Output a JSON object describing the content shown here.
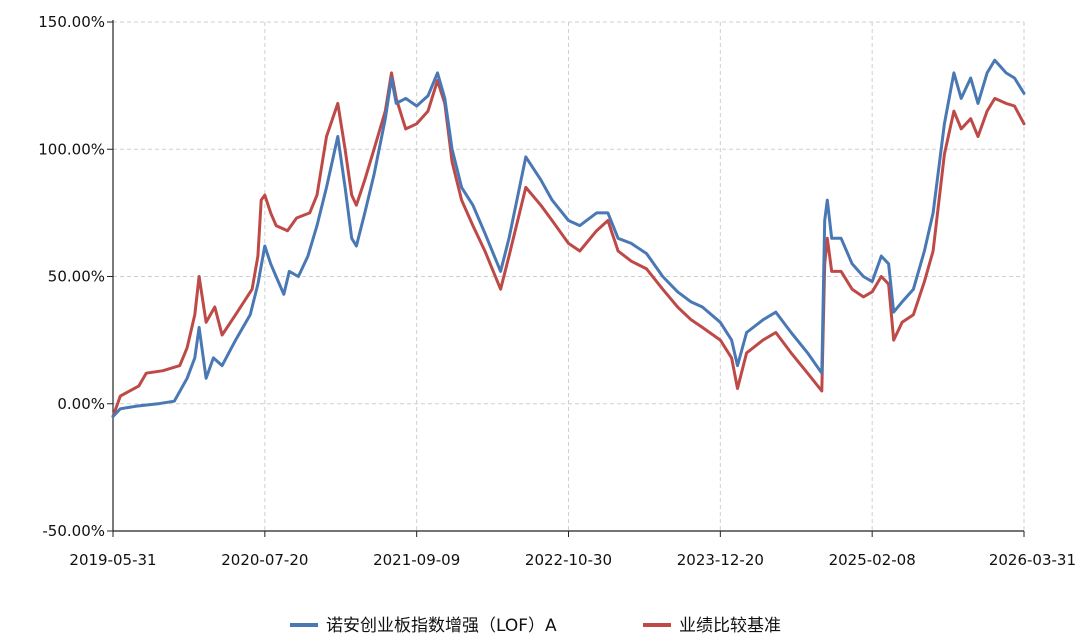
{
  "chart_data": {
    "type": "line",
    "title": "",
    "xlabel": "",
    "ylabel": "",
    "x_start": "2019-05-31",
    "x_end": "2026-03-31",
    "ylim": [
      -50,
      150
    ],
    "y_ticks": [
      -50,
      0,
      50,
      100,
      150
    ],
    "y_tick_labels": [
      "-50.00%",
      "0.00%",
      "50.00%",
      "100.00%",
      "150.00%"
    ],
    "x_ticks": [
      "2019-05-31",
      "2020-07-20",
      "2021-09-09",
      "2022-10-30",
      "2023-12-20",
      "2025-02-08",
      "2026-03-31"
    ],
    "grid": true,
    "legend_position": "bottom",
    "series": [
      {
        "name": "诺安创业板指数增强（LOF）A",
        "color": "#4a78b4",
        "points": [
          [
            "2019-05-31",
            -5
          ],
          [
            "2019-06-20",
            -2
          ],
          [
            "2019-08-01",
            -1
          ],
          [
            "2019-10-01",
            0
          ],
          [
            "2019-11-15",
            1
          ],
          [
            "2019-12-20",
            10
          ],
          [
            "2020-01-10",
            18
          ],
          [
            "2020-01-22",
            30
          ],
          [
            "2020-02-10",
            10
          ],
          [
            "2020-03-01",
            18
          ],
          [
            "2020-03-25",
            15
          ],
          [
            "2020-05-01",
            25
          ],
          [
            "2020-06-10",
            35
          ],
          [
            "2020-07-01",
            47
          ],
          [
            "2020-07-20",
            62
          ],
          [
            "2020-08-05",
            55
          ],
          [
            "2020-08-20",
            50
          ],
          [
            "2020-09-10",
            43
          ],
          [
            "2020-09-25",
            52
          ],
          [
            "2020-10-20",
            50
          ],
          [
            "2020-11-15",
            58
          ],
          [
            "2020-12-10",
            70
          ],
          [
            "2021-01-05",
            85
          ],
          [
            "2021-02-05",
            105
          ],
          [
            "2021-02-25",
            85
          ],
          [
            "2021-03-15",
            65
          ],
          [
            "2021-03-28",
            62
          ],
          [
            "2021-04-20",
            75
          ],
          [
            "2021-05-15",
            90
          ],
          [
            "2021-06-15",
            112
          ],
          [
            "2021-07-02",
            128
          ],
          [
            "2021-07-15",
            118
          ],
          [
            "2021-08-10",
            120
          ],
          [
            "2021-09-09",
            117
          ],
          [
            "2021-10-10",
            121
          ],
          [
            "2021-11-05",
            130
          ],
          [
            "2021-11-25",
            120
          ],
          [
            "2021-12-15",
            100
          ],
          [
            "2022-01-10",
            85
          ],
          [
            "2022-02-10",
            78
          ],
          [
            "2022-03-15",
            67
          ],
          [
            "2022-04-27",
            52
          ],
          [
            "2022-05-20",
            65
          ],
          [
            "2022-07-05",
            97
          ],
          [
            "2022-08-15",
            88
          ],
          [
            "2022-09-15",
            80
          ],
          [
            "2022-10-30",
            72
          ],
          [
            "2022-11-30",
            70
          ],
          [
            "2023-01-15",
            75
          ],
          [
            "2023-02-15",
            75
          ],
          [
            "2023-03-15",
            65
          ],
          [
            "2023-04-20",
            63
          ],
          [
            "2023-06-01",
            59
          ],
          [
            "2023-07-15",
            50
          ],
          [
            "2023-08-25",
            44
          ],
          [
            "2023-10-01",
            40
          ],
          [
            "2023-11-01",
            38
          ],
          [
            "2023-12-20",
            32
          ],
          [
            "2024-01-20",
            25
          ],
          [
            "2024-02-05",
            15
          ],
          [
            "2024-03-01",
            28
          ],
          [
            "2024-04-15",
            33
          ],
          [
            "2024-05-20",
            36
          ],
          [
            "2024-07-01",
            28
          ],
          [
            "2024-08-15",
            20
          ],
          [
            "2024-09-23",
            12
          ],
          [
            "2024-10-01",
            72
          ],
          [
            "2024-10-08",
            80
          ],
          [
            "2024-10-20",
            65
          ],
          [
            "2024-11-15",
            65
          ],
          [
            "2024-12-15",
            55
          ],
          [
            "2025-01-15",
            50
          ],
          [
            "2025-02-08",
            48
          ],
          [
            "2025-03-05",
            58
          ],
          [
            "2025-03-25",
            55
          ],
          [
            "2025-04-08",
            36
          ],
          [
            "2025-05-01",
            40
          ],
          [
            "2025-06-01",
            45
          ],
          [
            "2025-07-01",
            60
          ],
          [
            "2025-07-25",
            75
          ],
          [
            "2025-08-25",
            110
          ],
          [
            "2025-09-20",
            130
          ],
          [
            "2025-10-10",
            120
          ],
          [
            "2025-11-05",
            128
          ],
          [
            "2025-11-25",
            118
          ],
          [
            "2025-12-20",
            130
          ],
          [
            "2026-01-10",
            135
          ],
          [
            "2026-02-10",
            130
          ],
          [
            "2026-03-05",
            128
          ],
          [
            "2026-03-31",
            122
          ]
        ]
      },
      {
        "name": "业绩比较基准",
        "color": "#be4a48",
        "points": [
          [
            "2019-05-31",
            -5
          ],
          [
            "2019-06-20",
            3
          ],
          [
            "2019-08-10",
            7
          ],
          [
            "2019-08-30",
            12
          ],
          [
            "2019-10-15",
            13
          ],
          [
            "2019-11-30",
            15
          ],
          [
            "2019-12-20",
            22
          ],
          [
            "2020-01-10",
            35
          ],
          [
            "2020-01-22",
            50
          ],
          [
            "2020-02-10",
            32
          ],
          [
            "2020-03-05",
            38
          ],
          [
            "2020-03-25",
            27
          ],
          [
            "2020-05-01",
            35
          ],
          [
            "2020-06-15",
            45
          ],
          [
            "2020-07-01",
            58
          ],
          [
            "2020-07-10",
            80
          ],
          [
            "2020-07-20",
            82
          ],
          [
            "2020-08-05",
            75
          ],
          [
            "2020-08-20",
            70
          ],
          [
            "2020-09-20",
            68
          ],
          [
            "2020-10-15",
            73
          ],
          [
            "2020-11-20",
            75
          ],
          [
            "2020-12-10",
            82
          ],
          [
            "2021-01-05",
            105
          ],
          [
            "2021-02-05",
            118
          ],
          [
            "2021-02-25",
            100
          ],
          [
            "2021-03-15",
            82
          ],
          [
            "2021-03-28",
            78
          ],
          [
            "2021-04-20",
            88
          ],
          [
            "2021-05-15",
            100
          ],
          [
            "2021-06-15",
            115
          ],
          [
            "2021-07-02",
            130
          ],
          [
            "2021-07-15",
            120
          ],
          [
            "2021-08-10",
            108
          ],
          [
            "2021-09-09",
            110
          ],
          [
            "2021-10-10",
            115
          ],
          [
            "2021-11-05",
            127
          ],
          [
            "2021-11-25",
            118
          ],
          [
            "2021-12-15",
            95
          ],
          [
            "2022-01-10",
            80
          ],
          [
            "2022-02-10",
            70
          ],
          [
            "2022-03-15",
            60
          ],
          [
            "2022-04-27",
            45
          ],
          [
            "2022-05-20",
            58
          ],
          [
            "2022-07-05",
            85
          ],
          [
            "2022-08-15",
            78
          ],
          [
            "2022-09-15",
            72
          ],
          [
            "2022-10-30",
            63
          ],
          [
            "2022-11-30",
            60
          ],
          [
            "2023-01-15",
            68
          ],
          [
            "2023-02-15",
            72
          ],
          [
            "2023-03-15",
            60
          ],
          [
            "2023-04-20",
            56
          ],
          [
            "2023-06-01",
            53
          ],
          [
            "2023-07-15",
            45
          ],
          [
            "2023-08-25",
            38
          ],
          [
            "2023-10-01",
            33
          ],
          [
            "2023-11-01",
            30
          ],
          [
            "2023-12-20",
            25
          ],
          [
            "2024-01-20",
            18
          ],
          [
            "2024-02-05",
            6
          ],
          [
            "2024-03-01",
            20
          ],
          [
            "2024-04-15",
            25
          ],
          [
            "2024-05-20",
            28
          ],
          [
            "2024-07-01",
            20
          ],
          [
            "2024-08-15",
            12
          ],
          [
            "2024-09-23",
            5
          ],
          [
            "2024-10-01",
            55
          ],
          [
            "2024-10-08",
            65
          ],
          [
            "2024-10-20",
            52
          ],
          [
            "2024-11-15",
            52
          ],
          [
            "2024-12-15",
            45
          ],
          [
            "2025-01-15",
            42
          ],
          [
            "2025-02-08",
            44
          ],
          [
            "2025-03-05",
            50
          ],
          [
            "2025-03-25",
            47
          ],
          [
            "2025-04-08",
            25
          ],
          [
            "2025-05-01",
            32
          ],
          [
            "2025-06-01",
            35
          ],
          [
            "2025-07-01",
            48
          ],
          [
            "2025-07-25",
            60
          ],
          [
            "2025-08-25",
            98
          ],
          [
            "2025-09-20",
            115
          ],
          [
            "2025-10-10",
            108
          ],
          [
            "2025-11-05",
            112
          ],
          [
            "2025-11-25",
            105
          ],
          [
            "2025-12-20",
            115
          ],
          [
            "2026-01-10",
            120
          ],
          [
            "2026-02-10",
            118
          ],
          [
            "2026-03-05",
            117
          ],
          [
            "2026-03-31",
            110
          ]
        ]
      }
    ]
  }
}
